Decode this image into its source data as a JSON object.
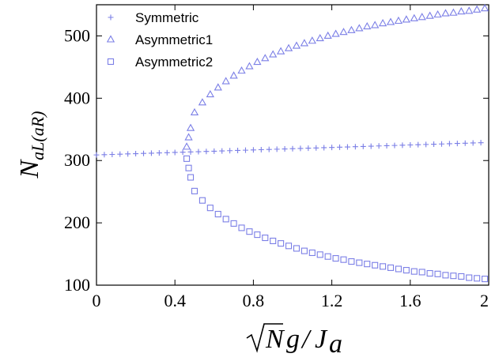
{
  "chart_data": {
    "type": "scatter",
    "xlim": [
      0,
      2
    ],
    "ylim": [
      100,
      550
    ],
    "x_ticks": [
      0,
      0.4,
      0.8,
      1.2,
      1.6,
      2
    ],
    "x_tick_labels": [
      "0",
      "0.4",
      "0.8",
      "1.2",
      "1.6",
      "2"
    ],
    "y_ticks": [
      100,
      200,
      300,
      400,
      500
    ],
    "y_tick_labels": [
      "100",
      "200",
      "300",
      "400",
      "500"
    ],
    "xlabel": "√Ng/J_a",
    "ylabel": "N_aL(aR)",
    "grid": false,
    "legend_position": "top-left",
    "color": "#7b7fe6",
    "series": [
      {
        "name": "Symmetric",
        "marker": "plus",
        "x": [
          0.0,
          0.04,
          0.08,
          0.12,
          0.16,
          0.2,
          0.24,
          0.28,
          0.32,
          0.36,
          0.4,
          0.44,
          0.48,
          0.52,
          0.56,
          0.6,
          0.64,
          0.68,
          0.72,
          0.76,
          0.8,
          0.84,
          0.88,
          0.92,
          0.96,
          1.0,
          1.04,
          1.08,
          1.12,
          1.16,
          1.2,
          1.24,
          1.28,
          1.32,
          1.36,
          1.4,
          1.44,
          1.48,
          1.52,
          1.56,
          1.6,
          1.64,
          1.68,
          1.72,
          1.76,
          1.8,
          1.84,
          1.88,
          1.92,
          1.96
        ],
        "y": [
          309,
          309.4,
          309.8,
          310.2,
          310.6,
          311,
          311.4,
          311.8,
          312.2,
          312.6,
          313,
          313.4,
          313.8,
          314.2,
          314.6,
          315,
          315.4,
          315.8,
          316.2,
          316.6,
          317,
          317.4,
          317.8,
          318.2,
          318.6,
          319,
          319.4,
          319.8,
          320.2,
          320.6,
          321,
          321.4,
          321.8,
          322.2,
          322.6,
          323,
          323.4,
          323.8,
          324.2,
          324.6,
          325,
          325.4,
          325.8,
          326.2,
          326.6,
          327,
          327.4,
          327.8,
          328.2,
          328.6
        ]
      },
      {
        "name": "Asymmetric1",
        "marker": "triangle",
        "x": [
          0.46,
          0.47,
          0.48,
          0.5,
          0.54,
          0.58,
          0.62,
          0.66,
          0.7,
          0.74,
          0.78,
          0.82,
          0.86,
          0.9,
          0.94,
          0.98,
          1.02,
          1.06,
          1.1,
          1.14,
          1.18,
          1.22,
          1.26,
          1.3,
          1.34,
          1.38,
          1.42,
          1.46,
          1.5,
          1.54,
          1.58,
          1.62,
          1.66,
          1.7,
          1.74,
          1.78,
          1.82,
          1.86,
          1.9,
          1.94,
          1.98
        ],
        "y": [
          322,
          337,
          352,
          377,
          393,
          406,
          417,
          427,
          436,
          444,
          451,
          458,
          464,
          470,
          475,
          480,
          484,
          488,
          492,
          496,
          500,
          503,
          506,
          509,
          512,
          515,
          517,
          520,
          522,
          524,
          526,
          528,
          530,
          532,
          534,
          536,
          537,
          539,
          540,
          542,
          544
        ]
      },
      {
        "name": "Asymmetric2",
        "marker": "square",
        "x": [
          0.46,
          0.47,
          0.48,
          0.5,
          0.54,
          0.58,
          0.62,
          0.66,
          0.7,
          0.74,
          0.78,
          0.82,
          0.86,
          0.9,
          0.94,
          0.98,
          1.02,
          1.06,
          1.1,
          1.14,
          1.18,
          1.22,
          1.26,
          1.3,
          1.34,
          1.38,
          1.42,
          1.46,
          1.5,
          1.54,
          1.58,
          1.62,
          1.66,
          1.7,
          1.74,
          1.78,
          1.82,
          1.86,
          1.9,
          1.94,
          1.98
        ],
        "y": [
          303,
          288,
          273,
          251,
          236,
          224,
          214,
          206,
          199,
          192,
          186,
          181,
          176,
          171,
          167,
          163,
          159,
          155,
          152,
          149,
          146,
          143,
          141,
          138,
          136,
          134,
          132,
          130,
          128,
          126,
          124,
          122,
          121,
          119,
          118,
          116,
          115,
          114,
          112,
          111,
          110
        ]
      }
    ]
  }
}
